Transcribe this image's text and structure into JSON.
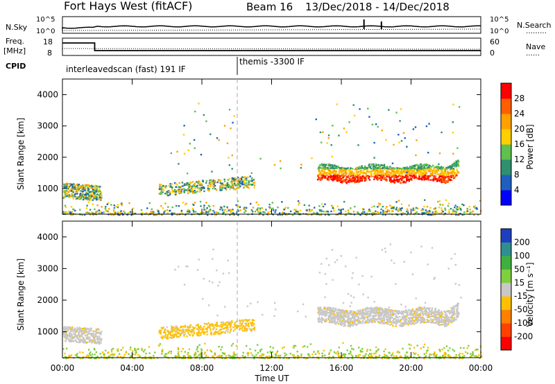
{
  "header": {
    "station": "Fort Hays West (fitACF)",
    "beam": "Beam 16",
    "dates": "13/Dec/2018 - 14/Dec/2018"
  },
  "strip": {
    "nsky_label": "N.Sky",
    "nsearch_label": "N.Search",
    "nsearch_dots": "………",
    "freq_label_1": "Freq.",
    "freq_label_2": "[MHz]",
    "nave_label": "Nave",
    "nave_dots": "……",
    "cpid_label": "CPID",
    "nsky_ticks": [
      "10^5",
      "10^0"
    ],
    "nsearch_ticks": [
      "10^5",
      "10^0"
    ],
    "freq_ticks": [
      "18",
      "8"
    ],
    "nave_ticks": [
      "60",
      "0"
    ],
    "cpid_1": "interleavedscan (fast) 191 IF",
    "cpid_2": "themis -3300 IF"
  },
  "panels": {
    "ylabel": "Slant Range [km]",
    "xlabel": "Time UT",
    "yticks": [
      "1000",
      "2000",
      "3000",
      "4000"
    ],
    "xticks": [
      "00:00",
      "04:00",
      "08:00",
      "12:00",
      "16:00",
      "20:00",
      "00:00"
    ]
  },
  "power_bar": {
    "label": "Power [dB]",
    "ticks": [
      "4",
      "8",
      "12",
      "16",
      "20",
      "24",
      "28"
    ],
    "colors": [
      "#0000ff",
      "#1f5fbf",
      "#2f8f6f",
      "#5fbf4f",
      "#ffcf00",
      "#ffa000",
      "#ff5f00",
      "#ff0000"
    ]
  },
  "velocity_bar": {
    "label": "Velocity [m s⁻¹]",
    "ticks": [
      "200",
      "100",
      "50",
      "15",
      "-15",
      "-50",
      "-100",
      "-200"
    ],
    "colors": [
      "#1f3fbf",
      "#2f8f8f",
      "#3faf3f",
      "#7fcf3f",
      "#c8c8c8",
      "#ffc000",
      "#ff8000",
      "#ff4000",
      "#ff0000"
    ]
  },
  "chart_data": {
    "type": "heatmap",
    "x_range_hours": [
      0,
      24
    ],
    "y_range_km": [
      180,
      4500
    ],
    "unit_switch_time": "10:00",
    "scatter_regions": [
      {
        "name": "near-range scatter",
        "t_start": 0,
        "t_end": 24,
        "range_km": [
          180,
          600
        ]
      },
      {
        "name": "early band",
        "t_start": 0,
        "t_end": 2,
        "range_km": [
          700,
          1200
        ]
      },
      {
        "name": "morning band",
        "t_start": 5.5,
        "t_end": 11,
        "range_km": [
          800,
          1300
        ]
      },
      {
        "name": "evening band",
        "t_start": 14.5,
        "t_end": 22.7,
        "range_km": [
          1200,
          1800
        ]
      }
    ]
  }
}
